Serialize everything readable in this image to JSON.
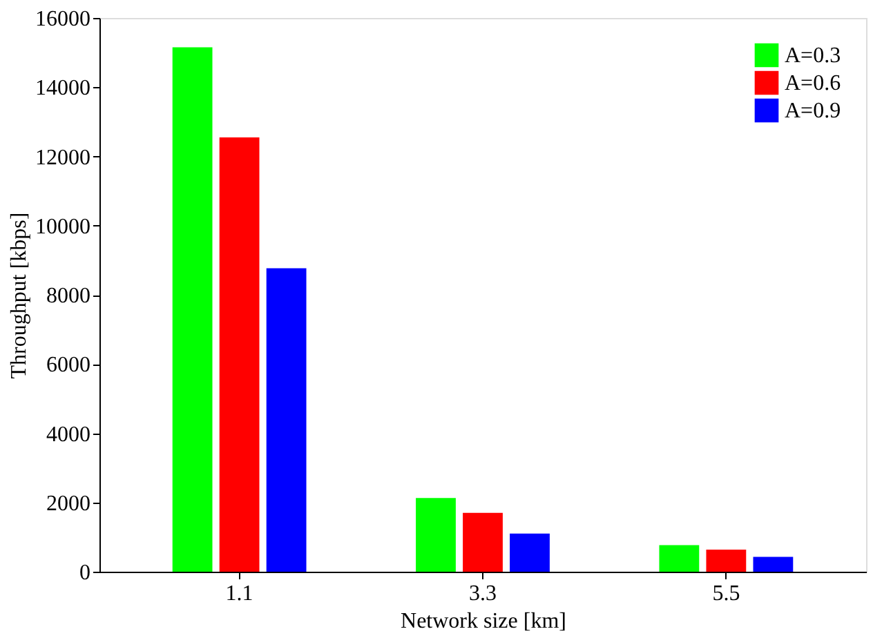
{
  "chart_data": {
    "type": "bar",
    "xlabel": "Network size [km]",
    "ylabel": "Throughput [kbps]",
    "categories": [
      "1.1",
      "3.3",
      "5.5"
    ],
    "series": [
      {
        "name": "A=0.3",
        "color": "#00ff00",
        "values": [
          15150,
          2130,
          770
        ]
      },
      {
        "name": "A=0.6",
        "color": "#ff0000",
        "values": [
          12550,
          1700,
          640
        ]
      },
      {
        "name": "A=0.9",
        "color": "#0000ff",
        "values": [
          8770,
          1100,
          430
        ]
      }
    ],
    "ylim": [
      0,
      16000
    ],
    "yticks": [
      0,
      2000,
      4000,
      6000,
      8000,
      10000,
      12000,
      14000,
      16000
    ],
    "grid": false,
    "legend": "top right"
  }
}
